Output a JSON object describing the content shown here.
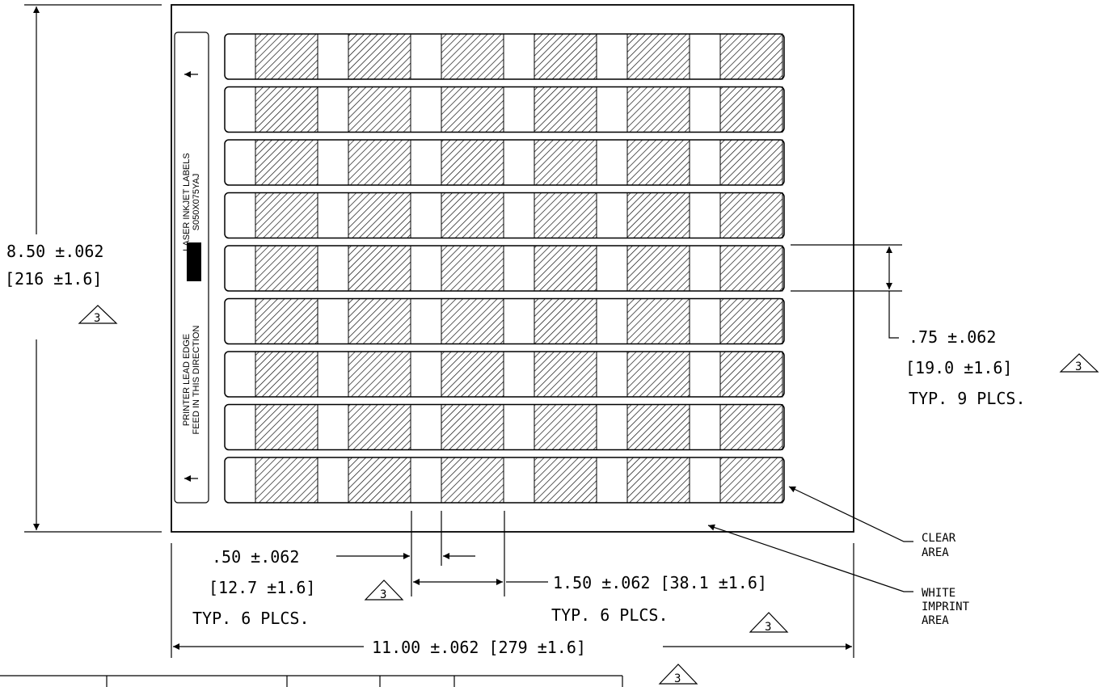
{
  "sheet": {
    "rows": 9,
    "columns": 6,
    "strip_line1": "LASER INKJET LABELS",
    "strip_line2": "S050X075YAJ",
    "strip_feed_line1": "PRINTER LEAD EDGE",
    "strip_feed_line2": "FEED IN THIS DIRECTION"
  },
  "dims": {
    "height_main": "8.50 ±.062",
    "height_metric": "[216 ±1.6]",
    "label_height_main": ".75 ±.062",
    "label_height_metric": "[19.0 ±1.6]",
    "label_height_typ": "TYP. 9 PLCS.",
    "clear_width_main": ".50 ±.062",
    "clear_width_metric": "[12.7 ±1.6]",
    "clear_width_typ": "TYP. 6 PLCS.",
    "label_width": "1.50 ±.062 [38.1 ±1.6]",
    "label_width_typ": "TYP. 6 PLCS.",
    "width_overall": "11.00 ±.062 [279 ±1.6]"
  },
  "notes": {
    "clear_line1": "CLEAR",
    "clear_line2": "AREA",
    "white_line1": "WHITE",
    "white_line2": "IMPRINT",
    "white_line3": "AREA"
  },
  "flag": "3"
}
